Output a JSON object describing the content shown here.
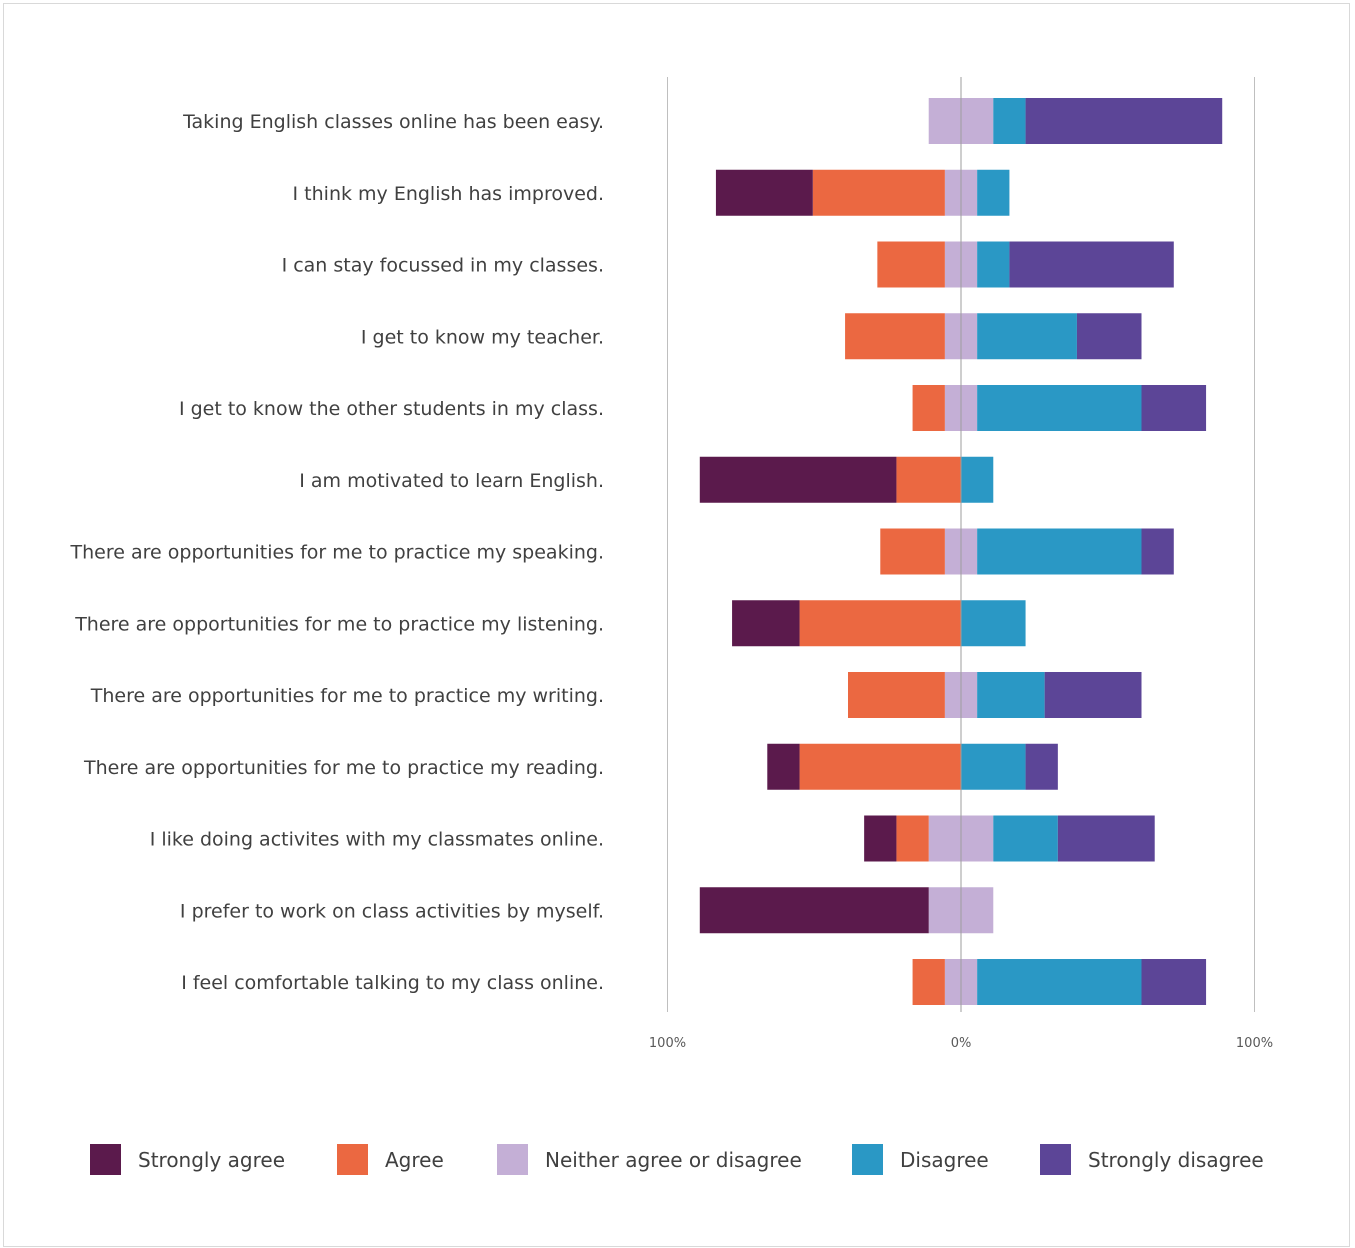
{
  "chart_data": {
    "type": "bar",
    "orientation": "horizontal",
    "stacked": "diverging",
    "categories": [
      "Taking English classes online has been easy.",
      "I think my English has improved.",
      "I can stay focussed in my classes.",
      "I get to know my teacher.",
      "I get to know the other students in my class.",
      "I am motivated to learn English.",
      "There are opportunities for me to practice my speaking.",
      "There are opportunities for me to practice my listening.",
      "There are opportunities for me to practice my writing.",
      "There are opportunities for me to practice my reading.",
      "I like doing activites with my classmates online.",
      "I prefer to work on class activities by myself.",
      "I feel comfortable talking to my class online."
    ],
    "series": [
      {
        "name": "Strongly agree",
        "color": "#5b1a4c",
        "values": [
          0,
          33,
          0,
          0,
          0,
          67,
          0,
          23,
          0,
          11,
          11,
          78,
          0
        ]
      },
      {
        "name": "Agree",
        "color": "#eb6841",
        "values": [
          0,
          45,
          23,
          34,
          11,
          22,
          22,
          55,
          33,
          55,
          11,
          0,
          11
        ]
      },
      {
        "name": "Neither agree or disagree",
        "color": "#c4afd6",
        "values": [
          22,
          11,
          11,
          11,
          11,
          0,
          11,
          0,
          11,
          0,
          22,
          22,
          11
        ]
      },
      {
        "name": "Disagree",
        "color": "#2a98c5",
        "values": [
          11,
          11,
          11,
          34,
          56,
          11,
          56,
          22,
          23,
          22,
          22,
          0,
          56
        ]
      },
      {
        "name": "Strongly disagree",
        "color": "#5c4597",
        "values": [
          67,
          0,
          56,
          22,
          22,
          0,
          11,
          0,
          33,
          11,
          33,
          0,
          22
        ]
      }
    ],
    "xticks": [
      "100%",
      "0%",
      "100%"
    ],
    "xlim": [
      -100,
      100
    ],
    "grid": true,
    "legend_position": "bottom"
  }
}
